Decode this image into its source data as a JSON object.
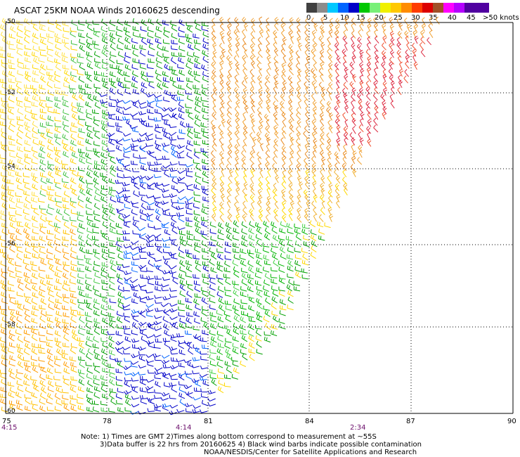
{
  "title": "ASCAT 25KM NOAA Winds 20160625 descending",
  "legend": {
    "labels": [
      "0",
      "5",
      "10",
      "15",
      "20",
      "25",
      "30",
      "35",
      "40",
      "45",
      ">50 knots"
    ],
    "colors": [
      "#404040",
      "#8c8c8c",
      "#00c8ff",
      "#0064ff",
      "#0000c8",
      "#00c800",
      "#78f078",
      "#f0f000",
      "#ffc800",
      "#ff8c00",
      "#ff3c00",
      "#dc0000",
      "#a05028",
      "#ff00ff",
      "#b400ff",
      "#5000a0"
    ]
  },
  "axes": {
    "lat_labels": [
      "-50",
      "-52",
      "-54",
      "-56",
      "-58",
      "-60"
    ],
    "lon_labels": [
      "75",
      "78",
      "81",
      "84",
      "87",
      "90"
    ]
  },
  "times": [
    "4:15",
    "4:14",
    "2:34"
  ],
  "notes": [
    "Note: 1) Times are GMT 2)Times along bottom correspond to measurement at ~55S",
    "3)Data buffer is 22 hrs from 20160625 4) Black wind barbs indicate possible contamination",
    "NOAA/NESDIS/Center for Satellite Applications and Research"
  ]
}
